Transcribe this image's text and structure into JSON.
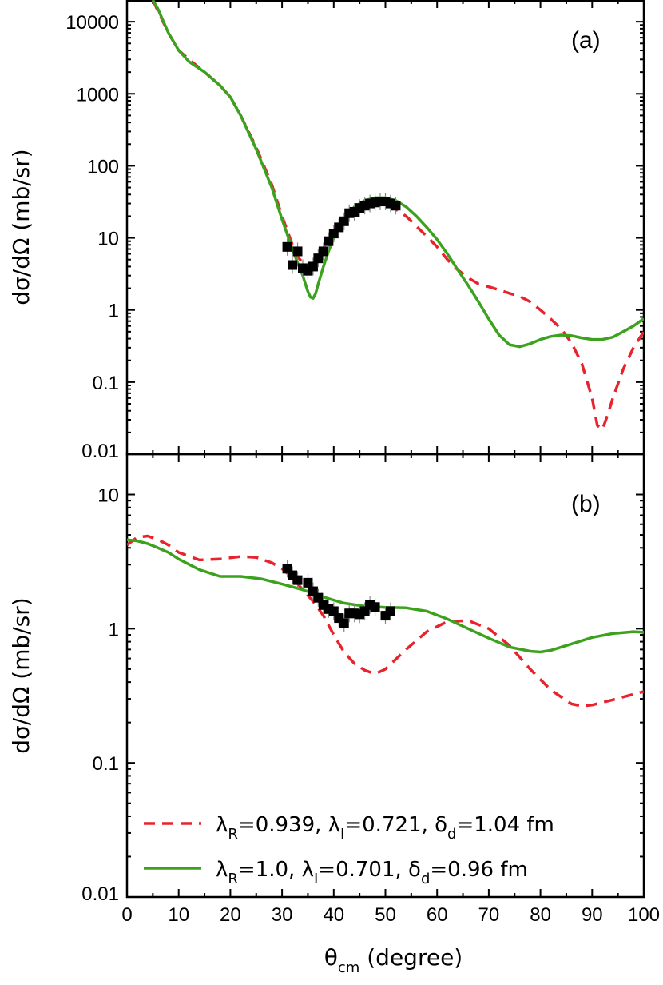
{
  "chart_data": {
    "type": "line",
    "x_axis": {
      "label": "θ",
      "label_sub": "cm",
      "label_suffix": " (degree)",
      "range": [
        0,
        100
      ],
      "ticks": [
        0,
        10,
        20,
        30,
        40,
        50,
        60,
        70,
        80,
        90,
        100
      ],
      "tick_labels": [
        "0",
        "10",
        "20",
        "30",
        "40",
        "50",
        "60",
        "70",
        "80",
        "90",
        "100"
      ]
    },
    "colors": {
      "dashed": "#e8232d",
      "solid": "#3ca21e",
      "data": "#000000"
    },
    "legend": [
      {
        "series": "dashed",
        "parts": [
          {
            "t": "λ"
          },
          {
            "t": "R",
            "sub": true
          },
          {
            "t": "=0.939, λ"
          },
          {
            "t": "I",
            "sub": true
          },
          {
            "t": "=0.721, δ"
          },
          {
            "t": "d",
            "sub": true
          },
          {
            "t": "=1.04 fm"
          }
        ]
      },
      {
        "series": "solid",
        "parts": [
          {
            "t": "λ"
          },
          {
            "t": "R",
            "sub": true
          },
          {
            "t": "=1.0, λ"
          },
          {
            "t": "I",
            "sub": true
          },
          {
            "t": "=0.701, δ"
          },
          {
            "t": "d",
            "sub": true
          },
          {
            "t": "=0.96 fm"
          }
        ]
      }
    ],
    "panels": [
      {
        "label": "(a)",
        "ylabel": "dσ/dΩ (mb/sr)",
        "yscale": "log",
        "ylim": [
          0.01,
          20000
        ],
        "y_ticks": [
          0.01,
          0.1,
          1,
          10,
          100,
          1000,
          10000
        ],
        "y_tick_labels": [
          "0.01",
          "0.1",
          "1",
          "10",
          "100",
          "1000",
          "10000"
        ],
        "series": [
          {
            "name": "dashed",
            "style": "dashed",
            "x": [
              5,
              6,
              8,
              10,
              12,
              15,
              18,
              20,
              22,
              25,
              28,
              30,
              32,
              33,
              34,
              35,
              36,
              37,
              38,
              40,
              42,
              44,
              46,
              48,
              50,
              52,
              54,
              56,
              58,
              60,
              62,
              64,
              66,
              68,
              70,
              72,
              74,
              76,
              78,
              80,
              82,
              84,
              86,
              88,
              90,
              91,
              92,
              93,
              94,
              96,
              98,
              100
            ],
            "y": [
              20000,
              14000,
              7000,
              4000,
              3000,
              2000,
              1300,
              900,
              500,
              180,
              55,
              20,
              8,
              5.5,
              4.5,
              4,
              4.3,
              5,
              6.5,
              11,
              17,
              23,
              28,
              30,
              29,
              25,
              20,
              14.5,
              10.5,
              7.5,
              5,
              3.6,
              2.8,
              2.3,
              2.1,
              1.9,
              1.7,
              1.55,
              1.3,
              1.0,
              0.75,
              0.55,
              0.35,
              0.18,
              0.06,
              0.025,
              0.022,
              0.035,
              0.06,
              0.15,
              0.3,
              0.5
            ]
          },
          {
            "name": "solid",
            "style": "solid",
            "x": [
              5,
              6,
              8,
              10,
              12,
              15,
              18,
              20,
              22,
              25,
              28,
              30,
              32,
              33,
              34,
              35,
              35.5,
              36,
              36.5,
              37,
              38,
              39,
              40,
              42,
              44,
              46,
              48,
              50,
              52,
              54,
              56,
              58,
              60,
              62,
              64,
              66,
              68,
              70,
              72,
              74,
              76,
              78,
              80,
              82,
              84,
              86,
              88,
              90,
              92,
              94,
              96,
              98,
              100
            ],
            "y": [
              20000,
              15000,
              7000,
              4000,
              2800,
              2000,
              1300,
              900,
              500,
              170,
              50,
              18,
              7,
              4.5,
              3,
              1.8,
              1.5,
              1.45,
              1.7,
              2.3,
              4,
              6.5,
              10,
              18,
              27,
              33,
              36,
              36,
              33,
              27,
              20,
              14,
              9.5,
              6,
              3.6,
              2.2,
              1.3,
              0.75,
              0.45,
              0.33,
              0.31,
              0.34,
              0.39,
              0.43,
              0.45,
              0.44,
              0.41,
              0.39,
              0.39,
              0.42,
              0.5,
              0.6,
              0.76
            ]
          }
        ],
        "points": {
          "x": [
            31,
            32,
            33,
            34,
            35,
            36,
            37,
            38,
            39,
            40,
            41,
            42,
            43,
            44,
            45,
            46,
            47,
            48,
            49,
            50,
            51,
            52
          ],
          "y": [
            7.5,
            4.2,
            6.5,
            3.8,
            3.5,
            4,
            5.2,
            6.5,
            9,
            11.5,
            14,
            17,
            22,
            23,
            26,
            28,
            30,
            31,
            32,
            32,
            30,
            28
          ]
        }
      },
      {
        "label": "(b)",
        "ylabel": "dσ/dΩ (mb/sr)",
        "yscale": "log",
        "ylim": [
          0.01,
          20
        ],
        "y_ticks": [
          0.01,
          0.1,
          1,
          10
        ],
        "y_tick_labels": [
          "0.01",
          "0.1",
          "1",
          "10"
        ],
        "series": [
          {
            "name": "dashed",
            "style": "dashed",
            "x": [
              0,
              2,
              4,
              6,
              8,
              10,
              14,
              18,
              22,
              25,
              28,
              30,
              32,
              34,
              36,
              38,
              40,
              42,
              44,
              46,
              48,
              50,
              54,
              58,
              62,
              66,
              70,
              74,
              78,
              82,
              86,
              88,
              90,
              94,
              98,
              100
            ],
            "y": [
              4.2,
              4.8,
              4.9,
              4.6,
              4.2,
              3.7,
              3.25,
              3.3,
              3.45,
              3.4,
              3.1,
              2.8,
              2.4,
              1.95,
              1.6,
              1.25,
              0.9,
              0.67,
              0.55,
              0.49,
              0.46,
              0.5,
              0.7,
              0.95,
              1.13,
              1.15,
              1.0,
              0.75,
              0.5,
              0.35,
              0.275,
              0.265,
              0.27,
              0.295,
              0.325,
              0.34
            ]
          },
          {
            "name": "solid",
            "style": "solid",
            "x": [
              0,
              2,
              4,
              6,
              8,
              10,
              14,
              18,
              22,
              26,
              30,
              34,
              38,
              42,
              46,
              50,
              54,
              58,
              62,
              66,
              70,
              74,
              78,
              80,
              82,
              86,
              90,
              94,
              98,
              100
            ],
            "y": [
              4.6,
              4.5,
              4.3,
              4.0,
              3.7,
              3.3,
              2.75,
              2.45,
              2.45,
              2.35,
              2.15,
              1.95,
              1.72,
              1.55,
              1.47,
              1.44,
              1.43,
              1.35,
              1.18,
              1.0,
              0.85,
              0.73,
              0.68,
              0.67,
              0.69,
              0.77,
              0.86,
              0.92,
              0.95,
              0.94
            ]
          }
        ],
        "points": {
          "x": [
            31,
            32,
            33,
            35,
            36,
            37,
            38,
            39,
            40,
            41,
            42,
            43,
            44,
            45,
            46,
            47,
            48,
            50,
            51
          ],
          "y": [
            2.8,
            2.5,
            2.3,
            2.2,
            1.9,
            1.7,
            1.5,
            1.4,
            1.35,
            1.2,
            1.1,
            1.3,
            1.3,
            1.28,
            1.35,
            1.5,
            1.45,
            1.25,
            1.35
          ]
        }
      }
    ]
  }
}
